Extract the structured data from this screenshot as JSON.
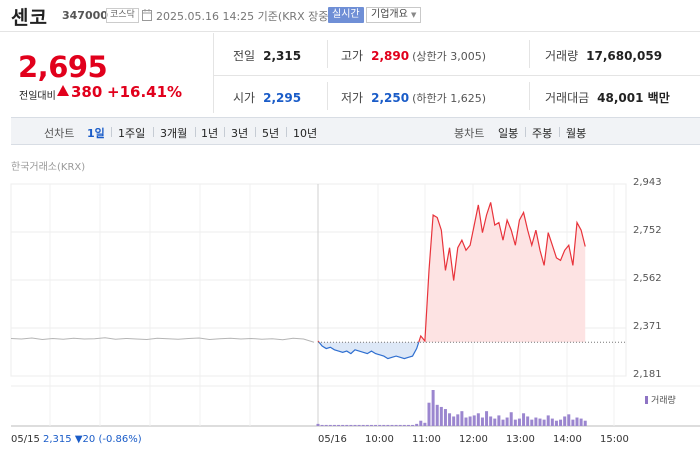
{
  "stock": {
    "name": "센코",
    "code": "347000",
    "market": "코스닥",
    "timestamp": "2025.05.16 14:25 기준(KRX 장중)",
    "realtime_label": "실시간",
    "company_info_label": "기업개요"
  },
  "quote": {
    "price": "2,695",
    "change_label": "전일대비",
    "change": "380",
    "change_rate": "+16.41%",
    "prev_close_label": "전일",
    "prev_close": "2,315",
    "open_label": "시가",
    "open": "2,295",
    "high_label": "고가",
    "high": "2,890",
    "upper_limit": "(상한가 3,005)",
    "low_label": "저가",
    "low": "2,250",
    "lower_limit": "(하한가 1,625)",
    "volume_label": "거래량",
    "volume": "17,680,059",
    "amount_label": "거래대금",
    "amount": "48,001 백만"
  },
  "toolbar": {
    "line_label": "선차트",
    "line_periods": [
      "1일",
      "1주일",
      "3개월",
      "1년",
      "3년",
      "5년",
      "10년"
    ],
    "selected_period": "1일",
    "candle_label": "봉차트",
    "candle_periods": [
      "일봉",
      "주봉",
      "월봉"
    ]
  },
  "chart_source": "한국거래소(KRX)",
  "chart_data": {
    "type": "line",
    "y_ticks": [
      "2,943",
      "2,752",
      "2,562",
      "2,371",
      "2,181"
    ],
    "ylim": [
      2181,
      2943
    ],
    "baseline": 2315,
    "x_labels": [
      "05/15",
      "05/16",
      "10:00",
      "11:00",
      "12:00",
      "13:00",
      "14:00",
      "15:00"
    ],
    "volume_label": "거래량",
    "prev_day": {
      "date": "05/15",
      "close": "2,315",
      "change": "▼20",
      "rate": "(-0.86%)"
    },
    "series": [
      {
        "x": [
          "09:00",
          "09:05",
          "09:10",
          "09:15",
          "09:20",
          "09:25",
          "09:30",
          "09:35",
          "09:40",
          "09:45",
          "09:50",
          "09:55",
          "10:00",
          "10:05",
          "10:10",
          "10:15",
          "10:20",
          "10:25",
          "10:30",
          "10:35",
          "10:40",
          "10:45",
          "10:50",
          "10:55",
          "11:00",
          "11:05",
          "11:10",
          "11:15",
          "11:20",
          "11:25",
          "11:30",
          "11:35",
          "11:40",
          "11:45",
          "11:50",
          "11:55",
          "12:00",
          "12:05",
          "12:10",
          "12:15",
          "12:20",
          "12:25",
          "12:30",
          "12:35",
          "12:40",
          "12:45",
          "12:50",
          "12:55",
          "13:00",
          "13:05",
          "13:10",
          "13:15",
          "13:20",
          "13:25",
          "13:30",
          "13:35",
          "13:40",
          "13:45",
          "13:50",
          "13:55",
          "14:00",
          "14:05",
          "14:10",
          "14:15",
          "14:20",
          "14:25"
        ],
        "values": [
          2320,
          2300,
          2290,
          2295,
          2285,
          2280,
          2275,
          2280,
          2270,
          2285,
          2280,
          2275,
          2270,
          2280,
          2270,
          2265,
          2260,
          2250,
          2255,
          2260,
          2255,
          2250,
          2255,
          2260,
          2290,
          2340,
          2320,
          2600,
          2820,
          2810,
          2760,
          2600,
          2690,
          2560,
          2690,
          2720,
          2680,
          2700,
          2780,
          2860,
          2750,
          2820,
          2870,
          2780,
          2790,
          2720,
          2800,
          2760,
          2700,
          2800,
          2830,
          2760,
          2700,
          2760,
          2680,
          2620,
          2750,
          2700,
          2650,
          2640,
          2680,
          2700,
          2620,
          2790,
          2760,
          2695
        ]
      }
    ],
    "prev_day_values": [
      2330,
      2328,
      2332,
      2326,
      2330,
      2327,
      2331,
      2328,
      2329,
      2333,
      2327,
      2330,
      2328,
      2326,
      2331,
      2329,
      2327,
      2330,
      2332,
      2326,
      2329,
      2331,
      2328,
      2330,
      2327,
      2329,
      2325,
      2331,
      2328,
      2315
    ],
    "volume_values": [
      2,
      1,
      1,
      1,
      1,
      1,
      1,
      1,
      1,
      1,
      1,
      1,
      1,
      1,
      1,
      1,
      1,
      1,
      1,
      1,
      1,
      1,
      1,
      1,
      2,
      5,
      3,
      22,
      34,
      20,
      18,
      16,
      12,
      9,
      11,
      14,
      8,
      9,
      10,
      12,
      8,
      14,
      9,
      7,
      10,
      6,
      8,
      13,
      6,
      7,
      12,
      9,
      6,
      8,
      7,
      6,
      10,
      7,
      5,
      6,
      9,
      11,
      6,
      8,
      7,
      5
    ]
  }
}
